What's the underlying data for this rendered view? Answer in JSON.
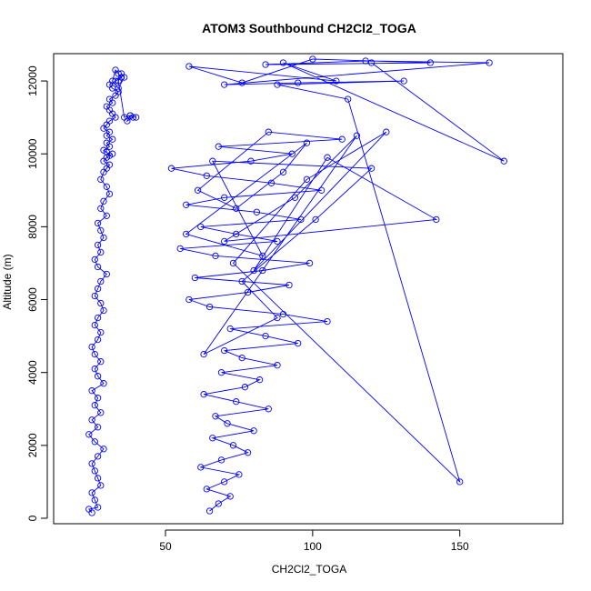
{
  "chart_data": {
    "type": "line",
    "title": "ATOM3 Southbound CH2Cl2_TOGA",
    "xlabel": "CH2Cl2_TOGA",
    "ylabel": "Altitude (m)",
    "xlim": [
      12,
      185
    ],
    "ylim": [
      -150,
      12750
    ],
    "xticks": [
      50,
      100,
      150
    ],
    "yticks": [
      0,
      2000,
      4000,
      6000,
      8000,
      10000,
      12000
    ],
    "grid": false,
    "legend": "none",
    "markers": "open-circle",
    "color": "#0000ff",
    "series": [
      {
        "x": [
          25,
          24,
          27,
          26,
          25,
          28,
          27,
          26,
          25,
          27,
          29,
          26,
          24,
          27,
          25,
          28,
          26,
          27,
          25,
          29,
          27,
          26,
          28,
          26,
          25,
          27,
          28,
          26,
          27,
          29,
          28,
          26,
          27,
          28,
          30,
          27,
          26,
          28,
          27,
          29,
          28,
          27,
          30,
          28,
          29,
          31,
          30,
          28,
          29,
          30,
          31,
          29,
          30,
          32,
          31,
          30,
          29,
          31,
          30,
          32,
          30,
          31,
          29,
          30,
          31,
          33,
          32,
          31,
          30,
          32,
          31,
          33,
          34,
          32,
          31,
          33,
          35,
          34,
          33,
          32,
          34,
          36,
          35,
          34,
          36,
          38,
          37,
          39,
          38,
          40
        ],
        "y": [
          150,
          250,
          300,
          500,
          700,
          900,
          1100,
          1300,
          1500,
          1700,
          1900,
          2100,
          2300,
          2500,
          2700,
          2900,
          3100,
          3300,
          3500,
          3700,
          3900,
          4100,
          4300,
          4500,
          4700,
          4900,
          5100,
          5300,
          5500,
          5700,
          5900,
          6100,
          6300,
          6500,
          6700,
          6900,
          7100,
          7300,
          7500,
          7700,
          7900,
          8100,
          8300,
          8500,
          8700,
          8900,
          9100,
          9300,
          9500,
          9600,
          9700,
          9800,
          9900,
          10000,
          9950,
          10050,
          10100,
          10200,
          10300,
          10400,
          10500,
          10600,
          10700,
          10800,
          10900,
          11000,
          11100,
          11200,
          11300,
          11400,
          11500,
          11600,
          11700,
          11800,
          11900,
          12000,
          12100,
          12200,
          12300,
          12000,
          11800,
          12100,
          12200,
          12000,
          11000,
          11050,
          10900,
          11000,
          11050,
          11000
        ]
      },
      {
        "x": [
          65,
          68,
          72,
          64,
          70,
          75,
          62,
          69,
          78,
          73,
          66,
          80,
          71,
          67,
          85,
          74,
          63,
          77,
          82,
          69,
          88,
          76,
          70,
          95,
          84,
          72,
          105,
          90,
          65,
          58,
          78,
          92,
          60,
          83,
          99,
          67,
          55,
          88,
          74,
          62,
          96,
          81,
          57,
          70,
          103,
          86,
          64,
          52,
          79,
          93,
          68,
          110,
          85,
          61,
          74,
          90,
          98,
          57,
          83,
          66,
          120,
          101,
          76,
          88,
          63,
          115,
          94,
          70,
          142,
          105,
          80,
          125,
          98,
          73,
          150,
          112,
          88,
          131,
          95,
          70,
          160,
          118,
          84,
          140,
          100,
          76,
          58,
          108,
          90,
          165,
          120
        ],
        "y": [
          200,
          400,
          600,
          800,
          1000,
          1200,
          1400,
          1600,
          1800,
          2000,
          2200,
          2400,
          2600,
          2800,
          3000,
          3200,
          3400,
          3600,
          3800,
          4000,
          4200,
          4400,
          4600,
          4800,
          5000,
          5200,
          5400,
          5600,
          5800,
          6000,
          6200,
          6400,
          6600,
          6800,
          7000,
          7200,
          7400,
          7600,
          7800,
          8000,
          8200,
          8400,
          8600,
          8800,
          9000,
          9200,
          9400,
          9600,
          9800,
          10000,
          10200,
          10400,
          10600,
          9000,
          8500,
          9500,
          10300,
          7800,
          7200,
          9800,
          9600,
          8200,
          6500,
          5500,
          4500,
          10500,
          8800,
          7600,
          8200,
          9900,
          6800,
          10600,
          9300,
          7000,
          1000,
          11500,
          11900,
          12000,
          11950,
          11900,
          12500,
          12550,
          12450,
          12500,
          12600,
          11950,
          12400,
          12000,
          12500,
          9800,
          12500
        ]
      }
    ]
  }
}
